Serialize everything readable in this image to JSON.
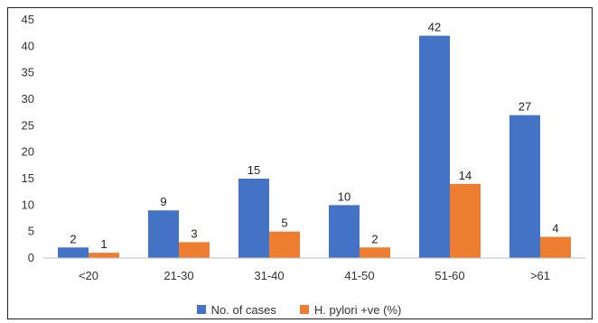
{
  "chart_data": {
    "type": "bar",
    "categories": [
      "<20",
      "21-30",
      "31-40",
      "41-50",
      "51-60",
      ">61"
    ],
    "series": [
      {
        "name": "No. of cases",
        "values": [
          2,
          9,
          15,
          10,
          42,
          27
        ],
        "color": "#4472C4"
      },
      {
        "name": "H. pylori +ve (%)",
        "values": [
          1,
          3,
          5,
          2,
          14,
          4
        ],
        "color": "#ED7D31"
      }
    ],
    "title": "",
    "xlabel": "",
    "ylabel": "",
    "ylim": [
      0,
      45
    ],
    "yticks": [
      0,
      5,
      10,
      15,
      20,
      25,
      30,
      35,
      40,
      45
    ],
    "grid": false,
    "legend_position": "bottom"
  }
}
